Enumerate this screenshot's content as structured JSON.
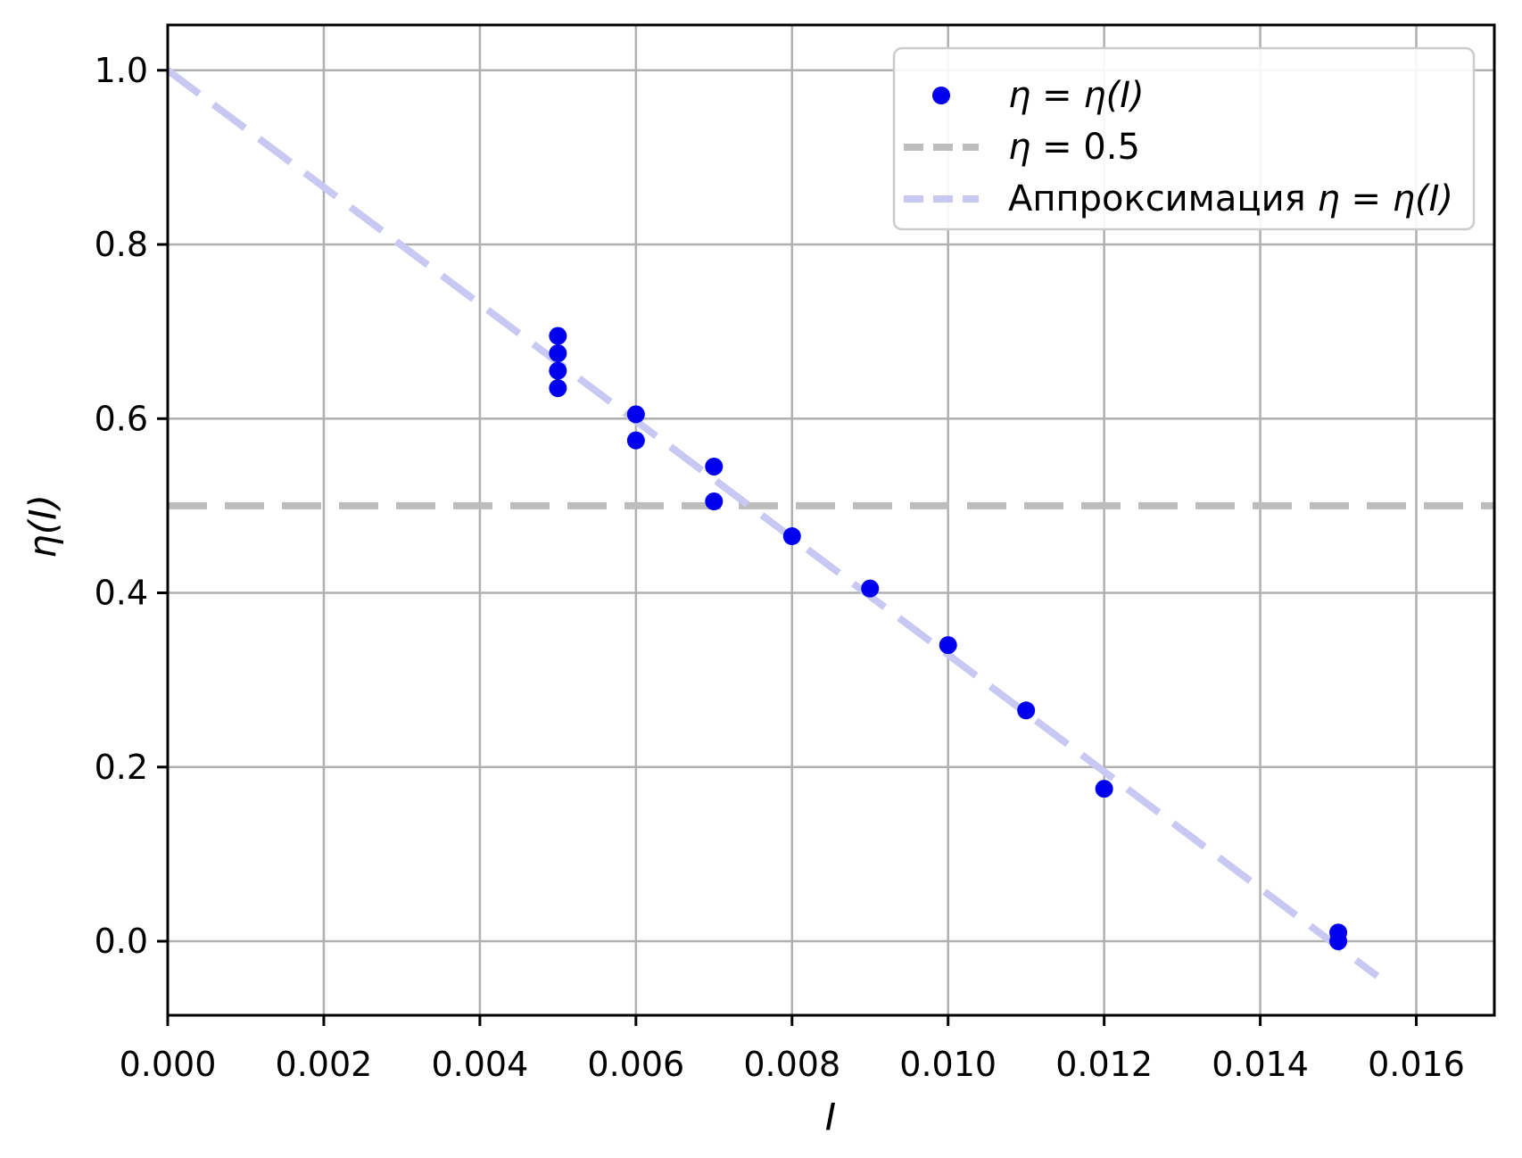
{
  "figure": {
    "background": "#ffffff"
  },
  "legend": {
    "frame_color": "#cccccc",
    "position": "upper right",
    "entries": [
      {
        "label": "η = η(I)",
        "prefix": "",
        "math": "η = η(I)",
        "suffix": "",
        "marker": "dot"
      },
      {
        "label": "η = 0.5",
        "prefix": "",
        "math": "η",
        "suffix": " = 0.5",
        "marker": "dashed-line"
      },
      {
        "label": "Аппроксимация η = η(I)",
        "prefix": "Аппроксимация ",
        "math": "η = η(I)",
        "suffix": "",
        "marker": "dashed-line"
      }
    ]
  },
  "chart_data": {
    "type": "scatter",
    "title": "",
    "xlabel": "I",
    "ylabel": "η(I)",
    "xlim": [
      0.0,
      0.017
    ],
    "ylim": [
      -0.085,
      1.052
    ],
    "grid": true,
    "xticks": [
      0.0,
      0.002,
      0.004,
      0.006,
      0.008,
      0.01,
      0.012,
      0.014,
      0.016
    ],
    "xtick_labels": [
      "0.000",
      "0.002",
      "0.004",
      "0.006",
      "0.008",
      "0.010",
      "0.012",
      "0.014",
      "0.016"
    ],
    "yticks": [
      0.0,
      0.2,
      0.4,
      0.6,
      0.8,
      1.0
    ],
    "ytick_labels": [
      "0.0",
      "0.2",
      "0.4",
      "0.6",
      "0.8",
      "1.0"
    ],
    "legend": [
      "η = η(I)",
      "η = 0.5",
      "Аппроксимация η = η(I)"
    ],
    "legend_position": "upper right",
    "series": [
      {
        "name": "η = η(I)",
        "type": "scatter",
        "color": "#0000ee",
        "marker_radius": 10,
        "points": [
          [
            0.005,
            0.695
          ],
          [
            0.005,
            0.675
          ],
          [
            0.005,
            0.655
          ],
          [
            0.005,
            0.635
          ],
          [
            0.006,
            0.605
          ],
          [
            0.006,
            0.575
          ],
          [
            0.007,
            0.545
          ],
          [
            0.007,
            0.505
          ],
          [
            0.008,
            0.465
          ],
          [
            0.009,
            0.405
          ],
          [
            0.01,
            0.34
          ],
          [
            0.011,
            0.265
          ],
          [
            0.012,
            0.175
          ],
          [
            0.015,
            0.01
          ],
          [
            0.015,
            0.0
          ]
        ]
      },
      {
        "name": "η = 0.5",
        "type": "hline",
        "color": "#bdbdbd",
        "dashed": true,
        "y": 0.5
      },
      {
        "name": "Аппроксимация η = η(I)",
        "type": "line",
        "color": "#c8c8f2",
        "dashed": true,
        "x": [
          0.0,
          0.0155
        ],
        "y": [
          1.0,
          -0.04
        ],
        "slope": -67.1,
        "intercept": 1.0
      }
    ]
  }
}
